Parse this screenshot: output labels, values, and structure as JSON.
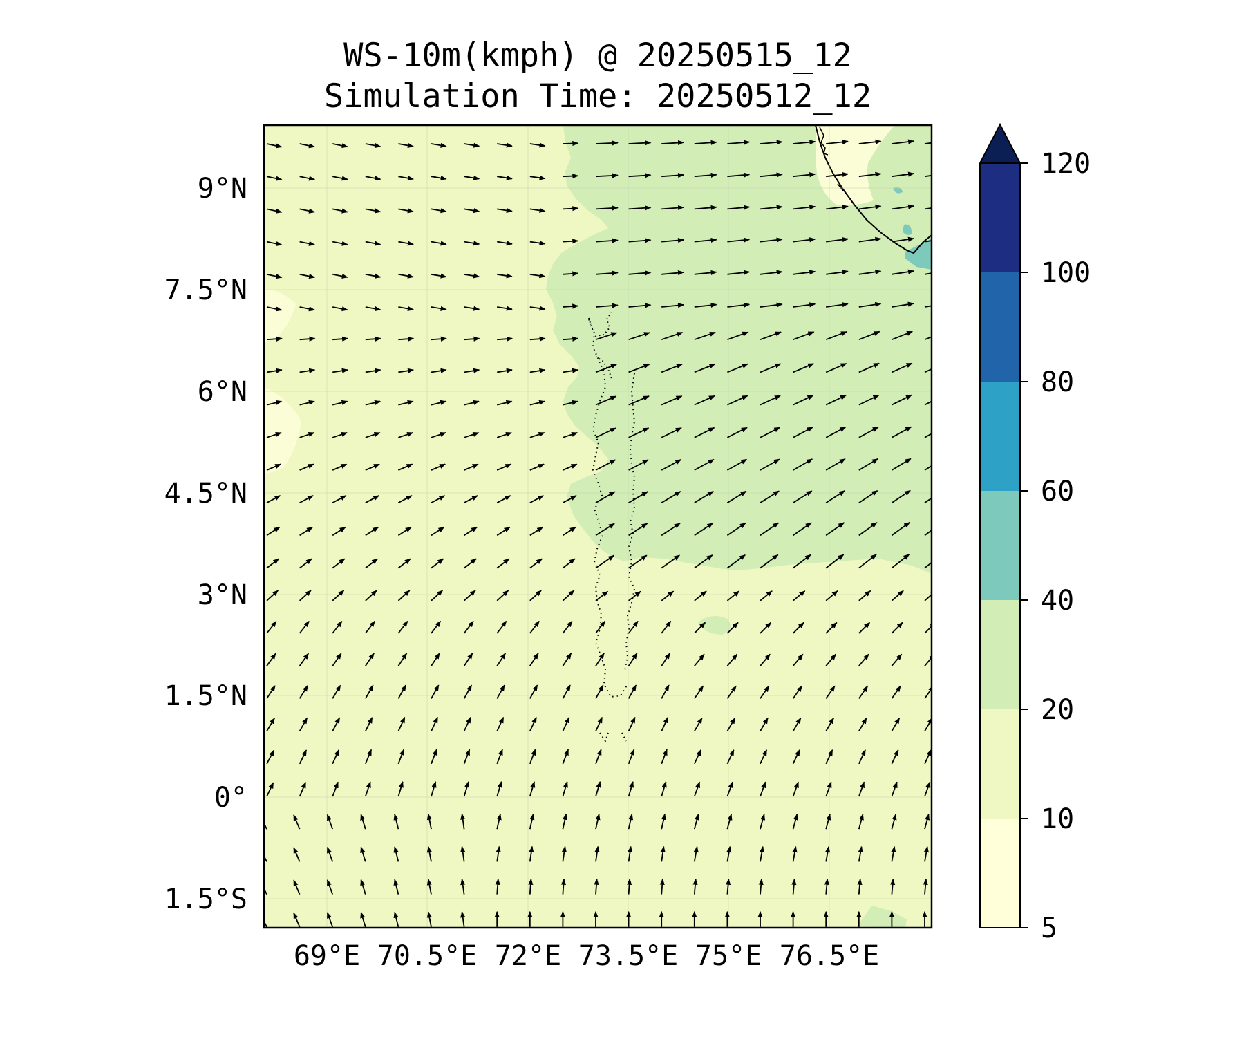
{
  "title": {
    "line1": "WS-10m(kmph) @ 20250515_12",
    "line2": "Simulation Time: 20250512_12"
  },
  "map": {
    "lat_ticks": [
      "9°N",
      "7.5°N",
      "6°N",
      "4.5°N",
      "3°N",
      "1.5°N",
      "0°",
      "1.5°S"
    ],
    "lon_ticks": [
      "69°E",
      "70.5°E",
      "72°E",
      "73.5°E",
      "75°E",
      "76.5°E"
    ],
    "colors": {
      "ocean_low": "#eff8c2",
      "calm": "#fbfdd6",
      "moderate": "#d2edb5",
      "strong": "#7dcabc",
      "coast": "#000000",
      "arrow": "#000000"
    }
  },
  "colorbar": {
    "levels": [
      "5",
      "10",
      "20",
      "40",
      "60",
      "80",
      "100",
      "120"
    ],
    "colors": [
      "#ffffd9",
      "#eff8c2",
      "#d2edb5",
      "#7dcabc",
      "#2ea2c6",
      "#2264a9",
      "#1c2d82",
      "#0b1f54"
    ],
    "extend": "max"
  }
}
